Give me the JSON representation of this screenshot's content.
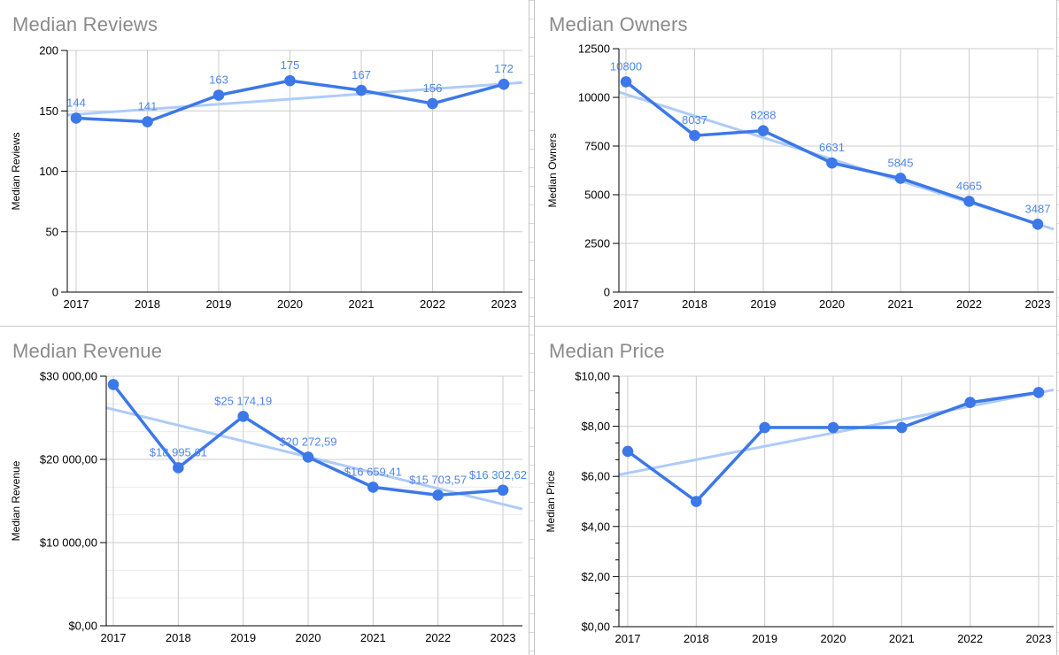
{
  "app": {
    "surface": "spreadsheet-chart-grid",
    "background": "#ffffff"
  },
  "styles": {
    "series_color": "#3c78e8",
    "trendline_color": "#aecbfa",
    "data_label_color": "#4f86ec",
    "title_color": "#8a8a8a",
    "axis_text_color": "#000000",
    "axis_line_color": "#000000",
    "gridline_color": "#cccccc",
    "minor_gridline_color": "#ececec",
    "divider_color": "#c4c4c4"
  },
  "chart_data": [
    {
      "type": "line",
      "title": "Median Reviews",
      "ylabel": "Median Reviews",
      "xlabel": "",
      "categories": [
        "2017",
        "2018",
        "2019",
        "2020",
        "2021",
        "2022",
        "2023"
      ],
      "values": [
        144,
        141,
        163,
        175,
        167,
        156,
        172
      ],
      "data_labels": [
        "144",
        "141",
        "163",
        "175",
        "167",
        "156",
        "172"
      ],
      "ymin": 0,
      "ymax": 200,
      "ytick_labels": [
        "0",
        "50",
        "100",
        "150",
        "200"
      ],
      "minor_gridlines_per_interval": 0,
      "minor_ticks_per_interval": 0,
      "trendline": true,
      "legend": "none",
      "grid": true
    },
    {
      "type": "line",
      "title": "Median Owners",
      "ylabel": "Median Owners",
      "xlabel": "",
      "categories": [
        "2017",
        "2018",
        "2019",
        "2020",
        "2021",
        "2022",
        "2023"
      ],
      "values": [
        10800,
        8037,
        8288,
        6631,
        5845,
        4665,
        3487
      ],
      "data_labels": [
        "10800",
        "8037",
        "8288",
        "6631",
        "5845",
        "4665",
        "3487"
      ],
      "ymin": 0,
      "ymax": 12500,
      "ytick_labels": [
        "0",
        "2500",
        "5000",
        "7500",
        "10000",
        "12500"
      ],
      "minor_gridlines_per_interval": 0,
      "minor_ticks_per_interval": 0,
      "trendline": true,
      "legend": "none",
      "grid": true
    },
    {
      "type": "line",
      "title": "Median Revenue",
      "ylabel": "Median Revenue",
      "xlabel": "",
      "categories": [
        "2017",
        "2018",
        "2019",
        "2020",
        "2021",
        "2022",
        "2023"
      ],
      "values": [
        29000,
        18995.61,
        25174.19,
        20272.59,
        16659.41,
        15703.57,
        16302.62
      ],
      "data_labels": [
        "",
        "$18 995,61",
        "$25 174,19",
        "$20 272,59",
        "$16 659,41",
        "$15 703,57",
        "$16 302,62"
      ],
      "ymin": 0,
      "ymax": 30000,
      "ytick_labels": [
        "$0,00",
        "$10 000,00",
        "$20 000,00",
        "$30 000,00"
      ],
      "minor_gridlines_per_interval": 2,
      "minor_ticks_per_interval": 0,
      "trendline": true,
      "legend": "none",
      "grid": true
    },
    {
      "type": "line",
      "title": "Median Price",
      "ylabel": "Median Price",
      "xlabel": "",
      "categories": [
        "2017",
        "2018",
        "2019",
        "2020",
        "2021",
        "2022",
        "2023"
      ],
      "values": [
        7.0,
        5.0,
        7.95,
        7.95,
        7.95,
        8.95,
        9.35
      ],
      "data_labels": null,
      "ymin": 0,
      "ymax": 10,
      "ytick_labels": [
        "$0,00",
        "$2,00",
        "$4,00",
        "$6,00",
        "$8,00",
        "$10,00"
      ],
      "minor_gridlines_per_interval": 0,
      "minor_ticks_per_interval": 2,
      "trendline": true,
      "legend": "none",
      "grid": true
    }
  ]
}
